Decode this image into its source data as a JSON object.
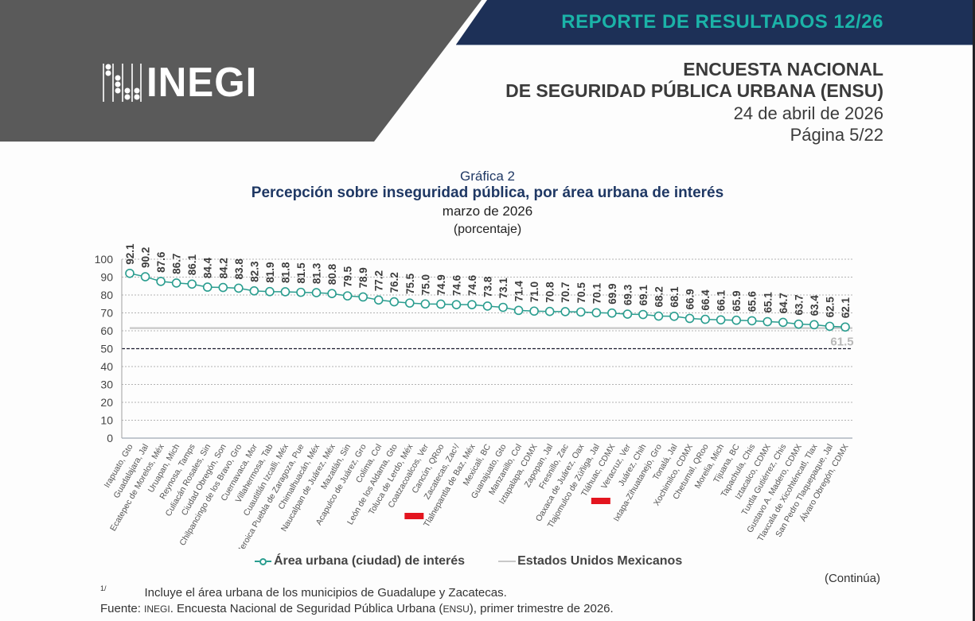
{
  "header": {
    "logo_text": "INEGI",
    "banner_title": "REPORTE DE RESULTADOS 12/26",
    "survey_line1": "ENCUESTA NACIONAL",
    "survey_line2": "DE SEGURIDAD PÚBLICA URBANA (ENSU)",
    "date": "24 de abril de 2026",
    "page": "Página 5/22",
    "colors": {
      "left_panel": "#5a5a5a",
      "banner": "#1d3057",
      "banner_text": "#1bb3a8"
    }
  },
  "chart_data": {
    "type": "line",
    "label": "Gráfica 2",
    "title": "Percepción sobre inseguridad pública, por área urbana de interés",
    "subtitle": "marzo de 2026",
    "unit_note": "(porcentaje)",
    "xlabel": "",
    "ylabel": "",
    "ylim": [
      0,
      100
    ],
    "yticks": [
      0,
      10,
      20,
      30,
      40,
      50,
      60,
      70,
      80,
      90,
      100
    ],
    "grid": true,
    "reference_line_value": 50,
    "legend_position": "bottom",
    "categories": [
      "Irapuato, Gto",
      "Guadalajara, Jal",
      "Ecatepec de Morelos, Méx",
      "Uruapan, Mich",
      "Reynosa, Tamps",
      "Culiacán Rosales, Sin",
      "Ciudad Obregón, Son",
      "Chilpancingo de los Bravo, Gro",
      "Cuernavaca, Mor",
      "Villahermosa, Tab",
      "Cuautitlán Izcalli, Méx",
      "Heroica Puebla de Zaragoza, Pue",
      "Chimalhuacán, Méx",
      "Naucalpan de Juárez, Méx",
      "Mazatlán, Sin",
      "Acapulco de Juárez, Gro",
      "Colima, Col",
      "León de los Aldama, Gto",
      "Toluca de Lerdo, Méx",
      "Coatzacoalcos, Ver",
      "Cancún, QRoo",
      "Zacatecas, Zac¹/",
      "Tlalnepantla de Baz, Méx",
      "Mexicali, BC",
      "Guanajuato, Gto",
      "Manzanillo, Col",
      "Iztapalapa, CDMX",
      "Zapopan, Jal",
      "Fresnillo, Zac",
      "Oaxaca de Juárez, Oax",
      "Tlajomulco de Zúñiga, Jal",
      "Tláhuac, CDMX",
      "Veracruz, Ver",
      "Juárez, Chih",
      "Ixtapa-Zihuatanejo, Gro",
      "Tonalá, Jal",
      "Xochimilco, CDMX",
      "Chetumal, QRoo",
      "Morelia, Mich",
      "Tijuana, BC",
      "Tapachula, Chis",
      "Iztacalco, CDMX",
      "Tuxtla Gutiérrez, Chis",
      "Gustavo A. Madero, CDMX",
      "Tlaxcala de Xicohténcatl, Tlax",
      "San Pedro Tlaquepaque, Jal",
      "Álvaro Obregón, CDMX"
    ],
    "series": [
      {
        "name": "Área urbana (ciudad) de interés",
        "color": "#2a9d8f",
        "values": [
          92.1,
          90.2,
          87.6,
          86.7,
          86.1,
          84.4,
          84.2,
          83.8,
          82.3,
          81.9,
          81.8,
          81.5,
          81.3,
          80.8,
          79.5,
          78.9,
          77.2,
          76.2,
          75.5,
          75.0,
          74.9,
          74.6,
          74.6,
          73.8,
          73.1,
          71.4,
          71.0,
          70.8,
          70.7,
          70.5,
          70.1,
          69.9,
          69.3,
          69.1,
          68.2,
          68.1,
          66.9,
          66.4,
          66.1,
          65.9,
          65.6,
          65.1,
          64.7,
          63.7,
          63.4,
          62.5,
          62.1
        ],
        "labels": [
          "92.1",
          "90.2",
          "87.6",
          "86.7",
          "86.1",
          "84.4",
          "84.2",
          "83.8",
          "82.3",
          "81.9",
          "81.8",
          "81.5",
          "81.3",
          "80.8",
          "79.5",
          "78.9",
          "77.2",
          "76.2",
          "75.5",
          "75.0",
          "74.9",
          "74.6",
          "74.6",
          "73.8",
          "73.1",
          "71.4",
          "71.0",
          "70.8",
          "70.7",
          "70.5",
          "70.1",
          "69.9",
          "69.3",
          "69.1",
          "68.2",
          "68.1",
          "66.9",
          "66.4",
          "66.1",
          "65.9",
          "65.6",
          "65.1",
          "64.7",
          "63.7",
          "63.4",
          "62.5",
          "62.1"
        ]
      },
      {
        "name": "Estados Unidos Mexicanos",
        "color": "#c8c8c8",
        "value": 61.5,
        "label": "61.5"
      }
    ],
    "highlight_markers": [
      {
        "category": "Coatzacoalcos, Ver",
        "color": "#e3151f"
      },
      {
        "category": "Tláhuac, CDMX",
        "color": "#e3151f"
      }
    ]
  },
  "footer": {
    "continua": "(Continúa)",
    "note_mark": "1/",
    "note_text": "Incluye el área urbana de los municipios de Guadalupe y Zacatecas.",
    "source_prefix": "Fuente: ",
    "source_org": "INEGI",
    "source_mid": ". Encuesta Nacional de Seguridad Pública Urbana (",
    "source_abbr": "ENSU",
    "source_end": "), primer trimestre de 2026."
  }
}
